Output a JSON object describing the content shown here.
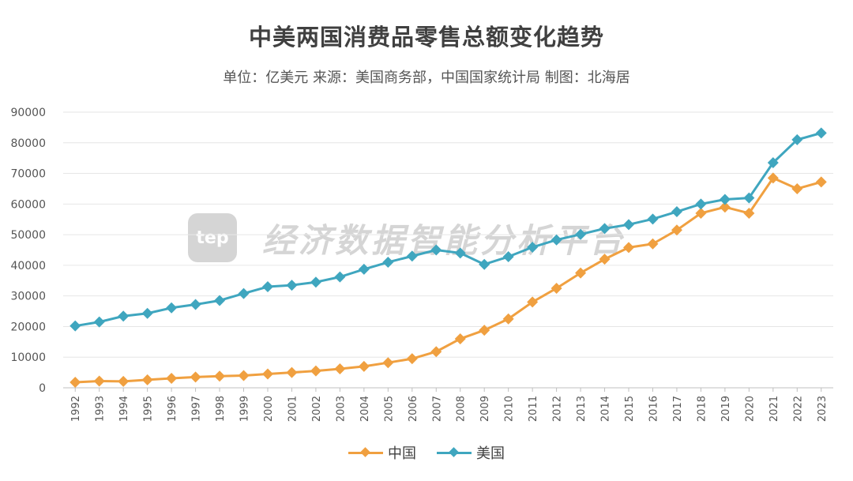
{
  "watermark": {
    "logo": "tep",
    "text": "经济数据智能分析平台"
  },
  "chart_data": {
    "type": "line",
    "title": "中美两国消费品零售总额变化趋势",
    "subtitle": "单位：亿美元 来源：美国商务部，中国国家统计局 制图：北海居",
    "categories": [
      "1992",
      "1993",
      "1994",
      "1995",
      "1996",
      "1997",
      "1998",
      "1999",
      "2000",
      "2001",
      "2002",
      "2003",
      "2004",
      "2005",
      "2006",
      "2007",
      "2008",
      "2009",
      "2010",
      "2011",
      "2012",
      "2013",
      "2014",
      "2015",
      "2016",
      "2017",
      "2018",
      "2019",
      "2020",
      "2021",
      "2022",
      "2023"
    ],
    "ylim": [
      0,
      90000
    ],
    "yticks": [
      "0",
      "10000",
      "20000",
      "30000",
      "40000",
      "50000",
      "60000",
      "70000",
      "80000",
      "90000"
    ],
    "grid": true,
    "legend_position": "bottom",
    "series": [
      {
        "name": "中国",
        "color": "#f0a040",
        "values": [
          1800,
          2200,
          2100,
          2600,
          3100,
          3500,
          3800,
          4000,
          4500,
          5000,
          5500,
          6200,
          7000,
          8200,
          9500,
          11800,
          16000,
          18800,
          22500,
          28000,
          32500,
          37500,
          42000,
          45800,
          47000,
          51500,
          57000,
          59000,
          57000,
          68500,
          65000,
          67200
        ]
      },
      {
        "name": "美国",
        "color": "#3fa6bf",
        "values": [
          20200,
          21500,
          23400,
          24300,
          26100,
          27200,
          28500,
          30800,
          33000,
          33500,
          34500,
          36200,
          38700,
          41000,
          43000,
          45000,
          44000,
          40300,
          42800,
          45900,
          48300,
          50100,
          52000,
          53300,
          55100,
          57500,
          60000,
          61500,
          62000,
          73500,
          81000,
          83200
        ]
      }
    ]
  },
  "legend": [
    {
      "label": "中国",
      "color": "#f0a040"
    },
    {
      "label": "美国",
      "color": "#3fa6bf"
    }
  ]
}
